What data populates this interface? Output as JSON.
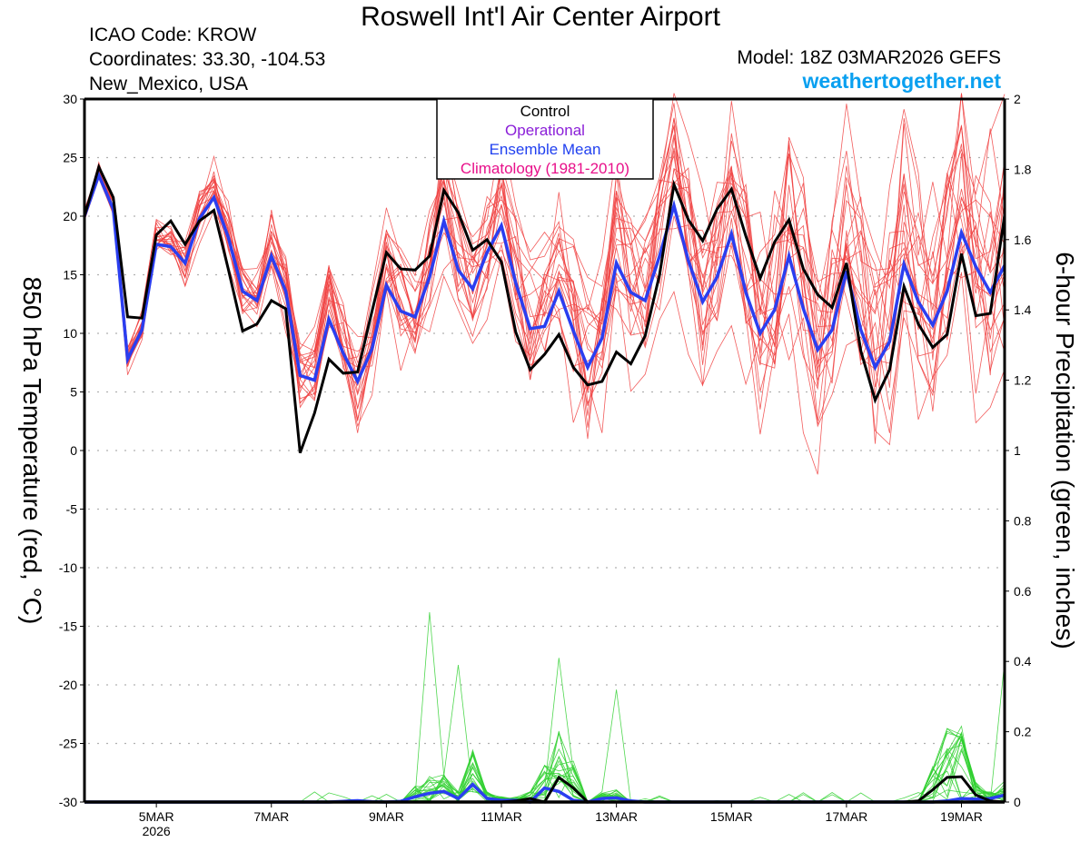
{
  "header": {
    "title": "Roswell Int'l Air Center Airport",
    "icao": "ICAO Code: KROW",
    "coordinates": "Coordinates: 33.30, -104.53",
    "region": "New_Mexico, USA",
    "model": "Model: 18Z 03MAR2026 GEFS",
    "site": "weathertogether.net"
  },
  "chart_data": {
    "type": "line",
    "title": "Roswell Int'l Air Center Airport",
    "ylabel": "850 hPa Temperature (red, °C)",
    "y2label": "6-hour Precipitation (green, inches)",
    "xlabel": "",
    "x_start": "03MAR2026 18Z",
    "x_step_hours": 6,
    "x_ticks": [
      {
        "day": 1.25,
        "label": "5MAR",
        "sublabel": "2026"
      },
      {
        "day": 3.25,
        "label": "7MAR",
        "sublabel": ""
      },
      {
        "day": 5.25,
        "label": "9MAR",
        "sublabel": ""
      },
      {
        "day": 7.25,
        "label": "11MAR",
        "sublabel": ""
      },
      {
        "day": 9.25,
        "label": "13MAR",
        "sublabel": ""
      },
      {
        "day": 11.25,
        "label": "15MAR",
        "sublabel": ""
      },
      {
        "day": 13.25,
        "label": "17MAR",
        "sublabel": ""
      },
      {
        "day": 15.25,
        "label": "19MAR",
        "sublabel": ""
      }
    ],
    "xlim_days": [
      0,
      16
    ],
    "ylim": [
      -30,
      30
    ],
    "yticks": [
      30,
      25,
      20,
      15,
      10,
      5,
      0,
      -5,
      -10,
      -15,
      -20,
      -25,
      -30
    ],
    "y2lim": [
      0,
      2
    ],
    "y2ticks": [
      "2",
      "1.8",
      "1.6",
      "1.4",
      "1.2",
      "1",
      "0.8",
      "0.6",
      "0.4",
      "0.2",
      "0"
    ],
    "grid": true,
    "legend": {
      "placement": "top-center",
      "entries": [
        {
          "label": "Control",
          "color": "#000000"
        },
        {
          "label": "Operational",
          "color": "#8a1ed8"
        },
        {
          "label": "Ensemble Mean",
          "color": "#2040f0"
        },
        {
          "label": "Climatology (1981-2010)",
          "color": "#e8108a"
        }
      ]
    },
    "colors": {
      "members_temp": "#f04040",
      "members_precip": "#30d030",
      "control": "#000000",
      "mean": "#2a3ef0",
      "grid": "#b0b0b0"
    },
    "series": [
      {
        "name": "Control",
        "variable": "temperature",
        "values": [
          20.0,
          24.2,
          21.6,
          11.4,
          11.3,
          18.4,
          19.6,
          17.6,
          19.6,
          20.5,
          15.5,
          10.2,
          10.8,
          12.8,
          12.1,
          -0.2,
          3.2,
          7.8,
          6.6,
          6.7,
          11.9,
          16.9,
          15.5,
          15.4,
          16.6,
          22.2,
          20.3,
          17.1,
          18.0,
          16.1,
          10.1,
          6.9,
          8.2,
          9.9,
          7.1,
          5.6,
          5.9,
          8.4,
          7.4,
          9.8,
          15.0,
          22.7,
          19.7,
          17.9,
          20.6,
          22.3,
          18.3,
          14.7,
          17.8,
          19.7,
          15.5,
          13.3,
          12.2,
          16.0,
          8.5,
          4.3,
          6.9,
          14.0,
          10.8,
          8.8,
          9.9,
          16.8,
          11.5,
          11.7,
          20.1
        ]
      },
      {
        "name": "Ensemble Mean",
        "variable": "temperature",
        "values": [
          20.0,
          23.5,
          20.6,
          7.8,
          10.3,
          17.6,
          17.4,
          16.0,
          19.8,
          21.6,
          18.2,
          13.6,
          12.8,
          16.6,
          13.6,
          6.4,
          6.0,
          11.2,
          8.3,
          5.9,
          8.7,
          14.1,
          11.9,
          11.4,
          14.8,
          19.6,
          15.4,
          13.8,
          16.9,
          19.2,
          14.3,
          10.4,
          10.6,
          13.6,
          10.2,
          7.1,
          9.6,
          16.0,
          13.5,
          12.8,
          16.6,
          20.9,
          16.2,
          12.7,
          14.8,
          18.5,
          13.5,
          10.0,
          12.0,
          16.6,
          12.1,
          8.6,
          10.3,
          15.3,
          10.3,
          7.1,
          9.3,
          15.9,
          12.7,
          10.7,
          13.6,
          18.6,
          15.7,
          13.5,
          15.8
        ]
      },
      {
        "name": "Control",
        "variable": "precipitation",
        "values": [
          0,
          0,
          0,
          0,
          0,
          0,
          0,
          0,
          0,
          0,
          0,
          0,
          0,
          0,
          0,
          0,
          0,
          0,
          0,
          0,
          0,
          0,
          0,
          0,
          0,
          0,
          0,
          0,
          0,
          0,
          0.003,
          0.01,
          0.0,
          0.07,
          0.04,
          0,
          0,
          0,
          0,
          0,
          0,
          0,
          0,
          0,
          0,
          0,
          0,
          0,
          0,
          0,
          0,
          0,
          0,
          0,
          0,
          0,
          0,
          0,
          0.003,
          0.035,
          0.07,
          0.072,
          0.02,
          0.003,
          0.0
        ]
      },
      {
        "name": "Ensemble Mean",
        "variable": "precipitation",
        "values": [
          0,
          0,
          0,
          0,
          0,
          0,
          0,
          0,
          0,
          0,
          0,
          0,
          0,
          0,
          0,
          0,
          0,
          0,
          0.002,
          0.004,
          0.001,
          0,
          0.002,
          0.015,
          0.025,
          0.03,
          0.01,
          0.05,
          0.01,
          0.005,
          0.005,
          0.0,
          0.04,
          0.03,
          0.005,
          0.0,
          0.01,
          0.012,
          0.003,
          0,
          0,
          0,
          0,
          0,
          0,
          0,
          0,
          0,
          0,
          0,
          0,
          0,
          0,
          0,
          0,
          0,
          0,
          0,
          0,
          0,
          0.003,
          0.01,
          0.008,
          0.01,
          0.02
        ]
      }
    ],
    "ensemble_members_note": "~20 thin red temperature member traces and green precipitation member traces spread around the mean"
  }
}
